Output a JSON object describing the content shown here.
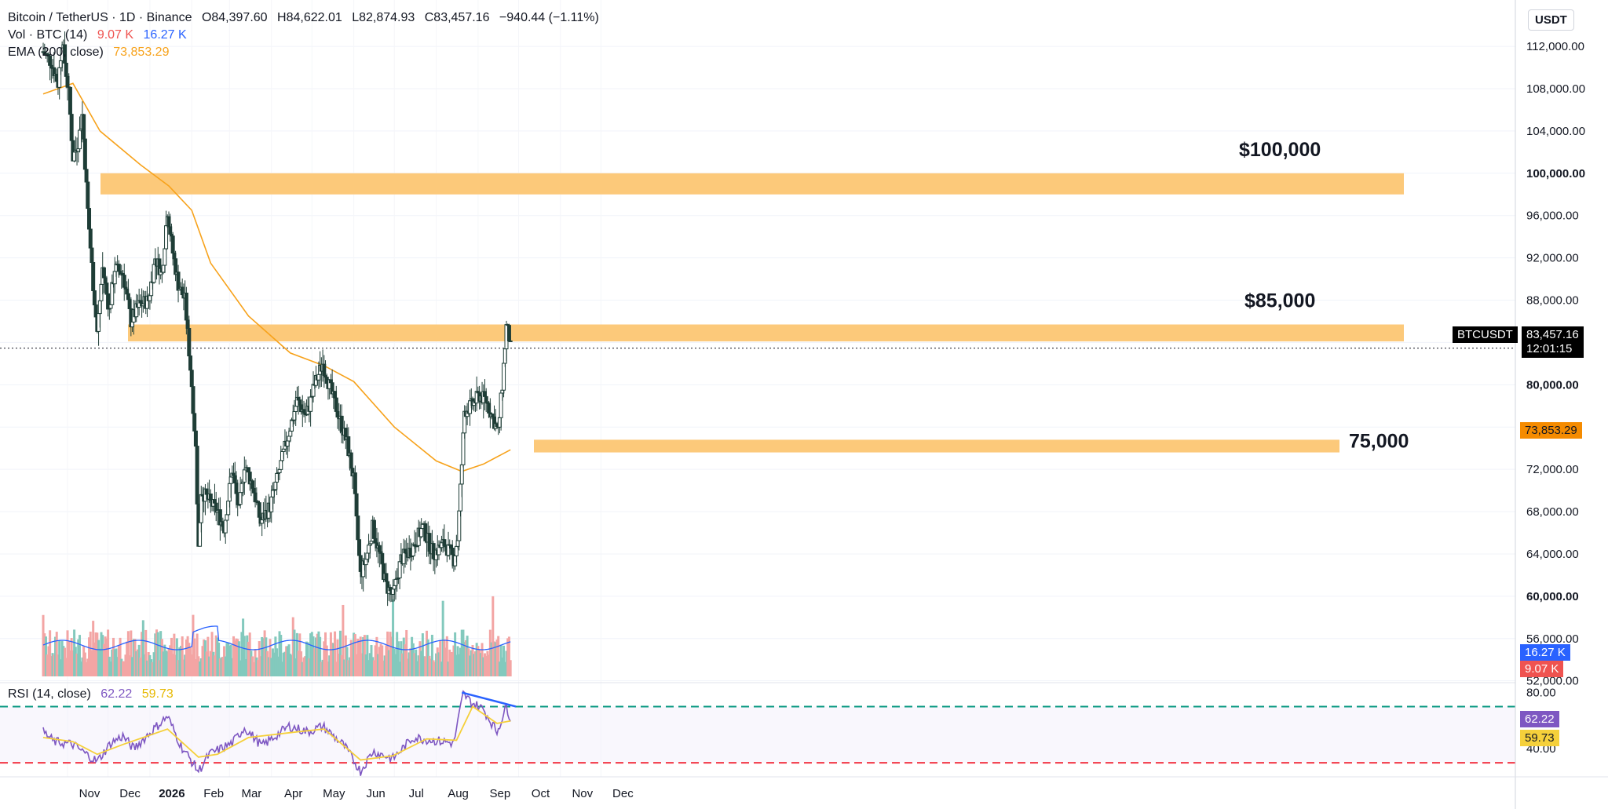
{
  "header": {
    "symbol_line": "Bitcoin / TetherUS · 1D · Binance",
    "open": "O84,397.60",
    "high": "H84,622.01",
    "low": "L82,874.93",
    "close": "C83,457.16",
    "change": "−940.44 (−1.11%)",
    "vol_label": "Vol · BTC (14)",
    "vol_value1": "9.07 K",
    "vol_value2": "16.27 K",
    "ema_label": "EMA (200, close)",
    "ema_value": "73,853.29",
    "rsi_label": "RSI (14, close)",
    "rsi_value1": "62.22",
    "rsi_value2": "59.73",
    "currency": "USDT"
  },
  "colors": {
    "up": "#26a69a",
    "down": "#ef5350",
    "candle_up_fill": "#ffffff",
    "candle_dark": "#1e3d36",
    "ema": "#f7a21b",
    "zone": "#fcc97a",
    "vol_up": "#83c9bd",
    "vol_down": "#f3a5a4",
    "vol_ma": "#2962ff",
    "rsi": "#7e57c2",
    "rsi_ma": "#f5d03b",
    "rsi_upper": "#089981",
    "rsi_lower": "#f23645",
    "divergence": "#2962ff"
  },
  "badges": {
    "ticker": "BTCUSDT",
    "last_price": "83,457.16",
    "countdown": "12:01:15",
    "ema_price": "73,853.29",
    "vol_ma": "16.27 K",
    "vol_last": "9.07 K",
    "rsi_val": "62.22",
    "rsi_ma": "59.73"
  },
  "chart_data": {
    "type": "candlestick",
    "title": "Bitcoin / TetherUS · 1D · Binance",
    "y_axis_ticks": [
      "112,000.00",
      "108,000.00",
      "104,000.00",
      "100,000.00",
      "96,000.00",
      "92,000.00",
      "88,000.00",
      "84,000.00",
      "80,000.00",
      "76,000.00",
      "72,000.00",
      "68,000.00",
      "64,000.00",
      "60,000.00",
      "56,000.00",
      "52,000.00"
    ],
    "y_axis_values": [
      112000,
      108000,
      104000,
      100000,
      96000,
      92000,
      88000,
      84000,
      80000,
      76000,
      72000,
      68000,
      64000,
      60000,
      56000,
      52000
    ],
    "x_axis_ticks": [
      "Nov",
      "Dec",
      "2026",
      "Feb",
      "Mar",
      "Apr",
      "May",
      "Jun",
      "Jul",
      "Aug",
      "Sep",
      "Oct",
      "Nov",
      "Dec"
    ],
    "ylim": [
      49600,
      114900
    ],
    "rsi_ticks": [
      "80.00",
      "40.00"
    ],
    "rsi_levels": [
      70,
      30
    ],
    "rsi_ylim": [
      20,
      87
    ],
    "zones": [
      {
        "label": "$100,000",
        "low": 98000,
        "high": 100000
      },
      {
        "label": "$85,000",
        "low": 84100,
        "high": 85700
      },
      {
        "label": "75,000",
        "low": 73600,
        "high": 74800
      }
    ],
    "price_path": [
      {
        "date": "2025-10-14",
        "price": 111500
      },
      {
        "date": "2025-10-20",
        "price": 110500
      },
      {
        "date": "2025-10-25",
        "price": 108500
      },
      {
        "date": "2025-10-28",
        "price": 112500
      },
      {
        "date": "2025-11-02",
        "price": 107500
      },
      {
        "date": "2025-11-05",
        "price": 101500
      },
      {
        "date": "2025-11-09",
        "price": 103000
      },
      {
        "date": "2025-11-12",
        "price": 105500
      },
      {
        "date": "2025-11-16",
        "price": 96500
      },
      {
        "date": "2025-11-20",
        "price": 89500
      },
      {
        "date": "2025-11-23",
        "price": 85000
      },
      {
        "date": "2025-11-27",
        "price": 91000
      },
      {
        "date": "2025-12-02",
        "price": 87000
      },
      {
        "date": "2025-12-06",
        "price": 91000
      },
      {
        "date": "2025-12-12",
        "price": 90500
      },
      {
        "date": "2025-12-18",
        "price": 86000
      },
      {
        "date": "2025-12-24",
        "price": 87500
      },
      {
        "date": "2025-12-31",
        "price": 88000
      },
      {
        "date": "2026-01-05",
        "price": 92000
      },
      {
        "date": "2026-01-10",
        "price": 90500
      },
      {
        "date": "2026-01-14",
        "price": 96500
      },
      {
        "date": "2026-01-18",
        "price": 92500
      },
      {
        "date": "2026-01-22",
        "price": 89500
      },
      {
        "date": "2026-01-27",
        "price": 88000
      },
      {
        "date": "2026-02-01",
        "price": 80000
      },
      {
        "date": "2026-02-04",
        "price": 74000
      },
      {
        "date": "2026-02-06",
        "price": 64500
      },
      {
        "date": "2026-02-08",
        "price": 70000
      },
      {
        "date": "2026-02-14",
        "price": 69000
      },
      {
        "date": "2026-02-20",
        "price": 68000
      },
      {
        "date": "2026-02-25",
        "price": 66500
      },
      {
        "date": "2026-03-03",
        "price": 72000
      },
      {
        "date": "2026-03-08",
        "price": 68000
      },
      {
        "date": "2026-03-12",
        "price": 72500
      },
      {
        "date": "2026-03-18",
        "price": 70500
      },
      {
        "date": "2026-03-24",
        "price": 67000
      },
      {
        "date": "2026-03-31",
        "price": 68500
      },
      {
        "date": "2026-04-08",
        "price": 72500
      },
      {
        "date": "2026-04-14",
        "price": 75500
      },
      {
        "date": "2026-04-20",
        "price": 78500
      },
      {
        "date": "2026-04-27",
        "price": 77000
      },
      {
        "date": "2026-05-03",
        "price": 80000
      },
      {
        "date": "2026-05-09",
        "price": 82000
      },
      {
        "date": "2026-05-15",
        "price": 79500
      },
      {
        "date": "2026-05-21",
        "price": 77000
      },
      {
        "date": "2026-05-27",
        "price": 74500
      },
      {
        "date": "2026-06-01",
        "price": 71000
      },
      {
        "date": "2026-06-03",
        "price": 67000
      },
      {
        "date": "2026-06-06",
        "price": 62000
      },
      {
        "date": "2026-06-10",
        "price": 63500
      },
      {
        "date": "2026-06-15",
        "price": 66500
      },
      {
        "date": "2026-06-20",
        "price": 64000
      },
      {
        "date": "2026-06-25",
        "price": 61000
      },
      {
        "date": "2026-06-30",
        "price": 60000
      },
      {
        "date": "2026-07-06",
        "price": 63500
      },
      {
        "date": "2026-07-14",
        "price": 64500
      },
      {
        "date": "2026-07-22",
        "price": 66500
      },
      {
        "date": "2026-07-30",
        "price": 64000
      },
      {
        "date": "2026-08-07",
        "price": 65000
      },
      {
        "date": "2026-08-14",
        "price": 63500
      },
      {
        "date": "2026-08-17",
        "price": 65500
      },
      {
        "date": "2026-08-20",
        "price": 72500
      },
      {
        "date": "2026-08-22",
        "price": 77500
      },
      {
        "date": "2026-08-27",
        "price": 78000
      },
      {
        "date": "2026-09-02",
        "price": 79000
      },
      {
        "date": "2026-09-07",
        "price": 78500
      },
      {
        "date": "2026-09-13",
        "price": 76500
      },
      {
        "date": "2026-09-16",
        "price": 75500
      },
      {
        "date": "2026-09-19",
        "price": 80000
      },
      {
        "date": "2026-09-22",
        "price": 85500
      },
      {
        "date": "2026-09-24",
        "price": 84500
      },
      {
        "date": "2026-09-25",
        "price": 83457
      }
    ],
    "ema_path": [
      {
        "date": "2025-10-14",
        "price": 107500
      },
      {
        "date": "2025-11-05",
        "price": 108500
      },
      {
        "date": "2025-11-25",
        "price": 104000
      },
      {
        "date": "2025-12-25",
        "price": 100800
      },
      {
        "date": "2026-01-15",
        "price": 98800
      },
      {
        "date": "2026-02-01",
        "price": 96500
      },
      {
        "date": "2026-02-15",
        "price": 91500
      },
      {
        "date": "2026-03-15",
        "price": 86500
      },
      {
        "date": "2026-04-15",
        "price": 83000
      },
      {
        "date": "2026-05-10",
        "price": 81800
      },
      {
        "date": "2026-06-01",
        "price": 80300
      },
      {
        "date": "2026-07-01",
        "price": 76000
      },
      {
        "date": "2026-08-01",
        "price": 72800
      },
      {
        "date": "2026-08-20",
        "price": 71800
      },
      {
        "date": "2026-09-05",
        "price": 72500
      },
      {
        "date": "2026-09-25",
        "price": 73853
      }
    ],
    "rsi_path": [
      {
        "date": "2025-10-14",
        "rsi": 52
      },
      {
        "date": "2025-10-22",
        "rsi": 45
      },
      {
        "date": "2025-11-05",
        "rsi": 43
      },
      {
        "date": "2025-11-15",
        "rsi": 36
      },
      {
        "date": "2025-11-23",
        "rsi": 31
      },
      {
        "date": "2025-12-03",
        "rsi": 44
      },
      {
        "date": "2025-12-12",
        "rsi": 49
      },
      {
        "date": "2025-12-20",
        "rsi": 40
      },
      {
        "date": "2026-01-05",
        "rsi": 55
      },
      {
        "date": "2026-01-14",
        "rsi": 63
      },
      {
        "date": "2026-01-24",
        "rsi": 42
      },
      {
        "date": "2026-02-06",
        "rsi": 24
      },
      {
        "date": "2026-02-14",
        "rsi": 36
      },
      {
        "date": "2026-03-03",
        "rsi": 44
      },
      {
        "date": "2026-03-12",
        "rsi": 55
      },
      {
        "date": "2026-03-25",
        "rsi": 42
      },
      {
        "date": "2026-04-14",
        "rsi": 56
      },
      {
        "date": "2026-04-28",
        "rsi": 52
      },
      {
        "date": "2026-05-09",
        "rsi": 56
      },
      {
        "date": "2026-05-25",
        "rsi": 42
      },
      {
        "date": "2026-06-06",
        "rsi": 24
      },
      {
        "date": "2026-06-15",
        "rsi": 38
      },
      {
        "date": "2026-06-30",
        "rsi": 33
      },
      {
        "date": "2026-07-15",
        "rsi": 48
      },
      {
        "date": "2026-07-30",
        "rsi": 46
      },
      {
        "date": "2026-08-14",
        "rsi": 44
      },
      {
        "date": "2026-08-21",
        "rsi": 79
      },
      {
        "date": "2026-08-27",
        "rsi": 73
      },
      {
        "date": "2026-09-05",
        "rsi": 68
      },
      {
        "date": "2026-09-15",
        "rsi": 52
      },
      {
        "date": "2026-09-22",
        "rsi": 70
      },
      {
        "date": "2026-09-25",
        "rsi": 62
      }
    ],
    "rsi_ma_path": [
      {
        "date": "2025-10-14",
        "rsi": 48
      },
      {
        "date": "2025-11-05",
        "rsi": 45
      },
      {
        "date": "2025-11-23",
        "rsi": 36
      },
      {
        "date": "2025-12-12",
        "rsi": 43
      },
      {
        "date": "2026-01-14",
        "rsi": 54
      },
      {
        "date": "2026-02-06",
        "rsi": 34
      },
      {
        "date": "2026-02-20",
        "rsi": 36
      },
      {
        "date": "2026-03-15",
        "rsi": 48
      },
      {
        "date": "2026-04-20",
        "rsi": 52
      },
      {
        "date": "2026-05-10",
        "rsi": 54
      },
      {
        "date": "2026-06-06",
        "rsi": 32
      },
      {
        "date": "2026-06-30",
        "rsi": 35
      },
      {
        "date": "2026-07-25",
        "rsi": 47
      },
      {
        "date": "2026-08-16",
        "rsi": 46
      },
      {
        "date": "2026-08-28",
        "rsi": 70
      },
      {
        "date": "2026-09-15",
        "rsi": 58
      },
      {
        "date": "2026-09-25",
        "rsi": 59.73
      }
    ],
    "divergence_line": [
      {
        "date": "2026-08-20",
        "rsi": 80
      },
      {
        "date": "2026-09-29",
        "rsi": 70
      }
    ]
  }
}
